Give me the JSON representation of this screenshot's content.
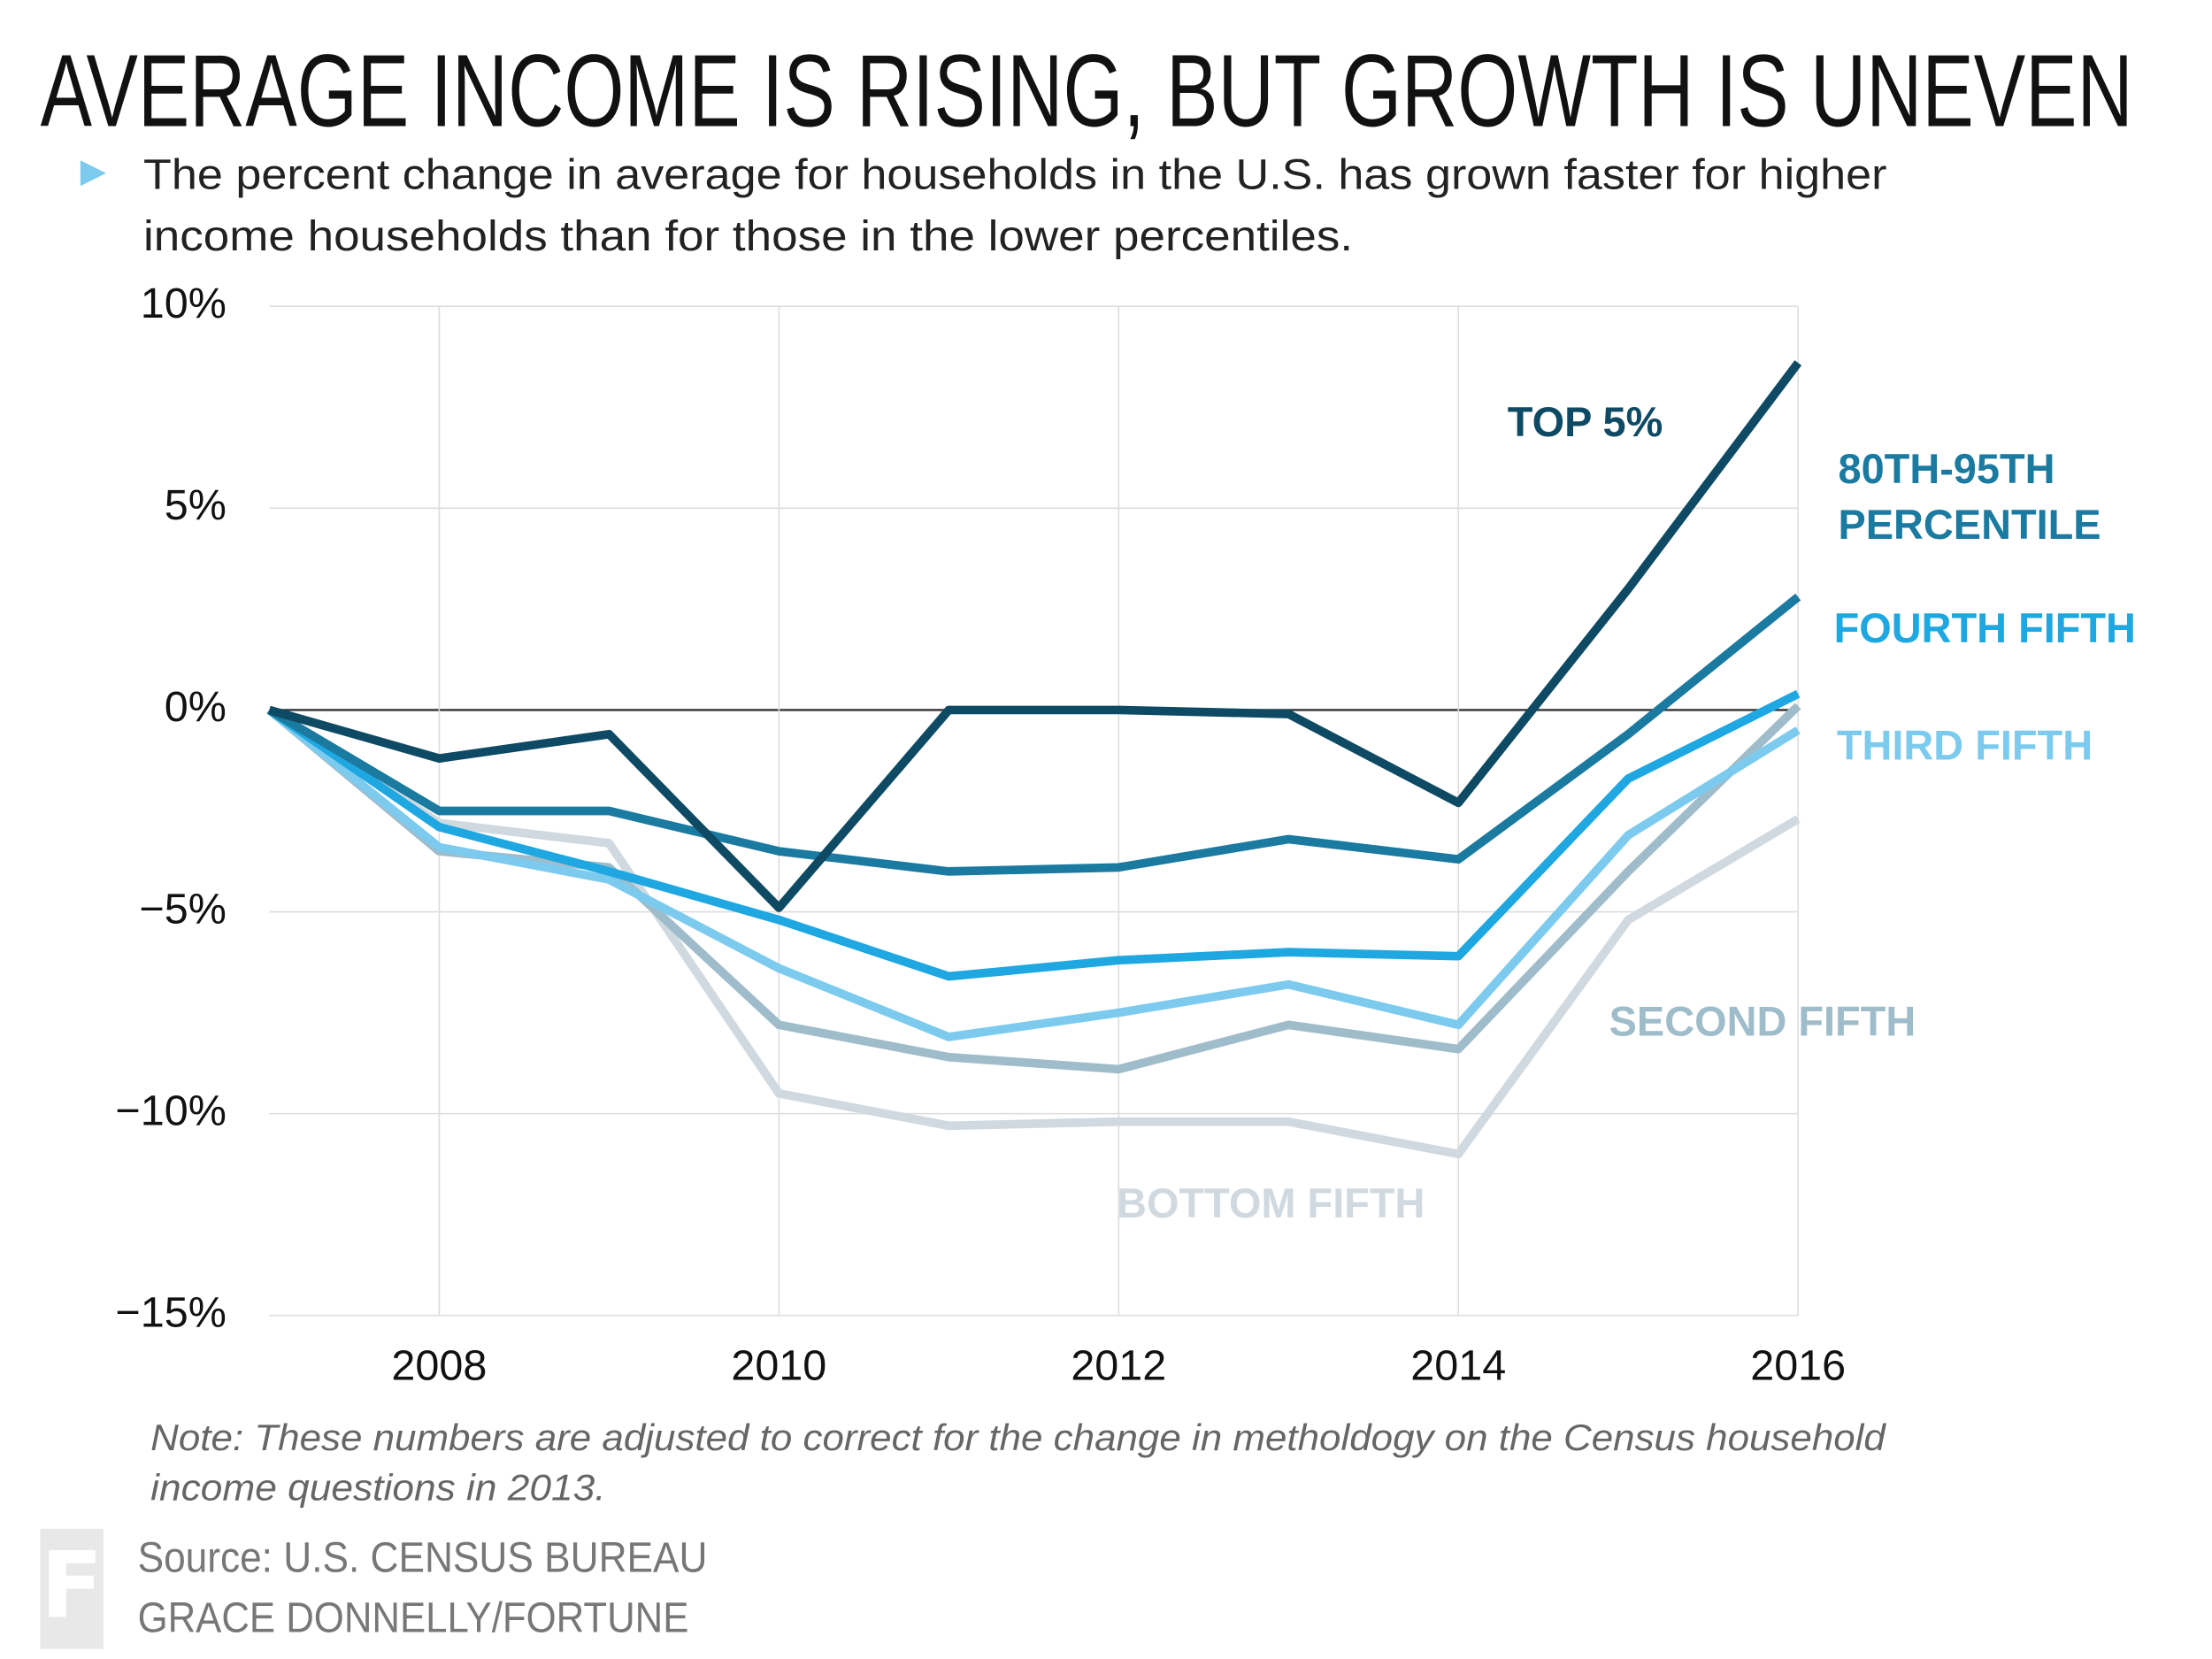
{
  "chart_data": {
    "type": "line",
    "title": "AVERAGE INCOME IS RISING, BUT GROWTH IS UNEVEN",
    "subtitle": [
      "The percent change in average for households in the U.S. has grown faster for higher",
      "income households than for those in the lower percentiles."
    ],
    "note": [
      "Note: These numbers are adjusted to correct for the change in metholdogy on the Census household",
      "income questions in 2013."
    ],
    "source": [
      "Source: U.S. CENSUS BUREAU",
      "GRACE DONNELLY/FORTUNE"
    ],
    "logo": "F",
    "x": [
      2007,
      2008,
      2009,
      2010,
      2011,
      2012,
      2013,
      2014,
      2015,
      2016
    ],
    "xlim": [
      2007,
      2016
    ],
    "xticks": [
      2008,
      2010,
      2012,
      2014,
      2016
    ],
    "ylim": [
      -15,
      10
    ],
    "yticks": [
      {
        "value": -15,
        "label": "−15%"
      },
      {
        "value": -10,
        "label": "−10%"
      },
      {
        "value": -5,
        "label": "−5%"
      },
      {
        "value": 0,
        "label": "0%"
      },
      {
        "value": 5,
        "label": "5%"
      },
      {
        "value": 10,
        "label": "10%"
      }
    ],
    "grid": true,
    "series": [
      {
        "name": "TOP 5%",
        "color": "#0e4a63",
        "values": [
          0,
          -1.2,
          -0.6,
          -4.9,
          0.0,
          0.0,
          -0.1,
          -2.3,
          3.0,
          8.6
        ]
      },
      {
        "name": "80TH-95TH PERCENTILE",
        "color": "#1a7aa0",
        "values": [
          0,
          -2.5,
          -2.5,
          -3.5,
          -4.0,
          -3.9,
          -3.2,
          -3.7,
          -0.6,
          2.8
        ]
      },
      {
        "name": "FOURTH FIFTH",
        "color": "#1ea7e0",
        "values": [
          0,
          -2.9,
          -4.0,
          -5.2,
          -6.6,
          -6.2,
          -6.0,
          -6.1,
          -1.7,
          0.4
        ]
      },
      {
        "name": "THIRD FIFTH",
        "color": "#7ccbee",
        "values": [
          0,
          -3.4,
          -4.2,
          -6.4,
          -8.1,
          -7.5,
          -6.8,
          -7.8,
          -3.1,
          -0.5
        ]
      },
      {
        "name": "SECOND FIFTH",
        "color": "#9fbccb",
        "values": [
          0,
          -3.5,
          -3.9,
          -7.8,
          -8.6,
          -8.9,
          -7.8,
          -8.4,
          -4.0,
          0.1
        ]
      },
      {
        "name": "BOTTOM FIFTH",
        "color": "#cfd9df",
        "values": [
          0,
          -2.8,
          -3.3,
          -9.5,
          -10.3,
          -10.2,
          -10.2,
          -11.0,
          -5.2,
          -2.7
        ]
      }
    ]
  }
}
